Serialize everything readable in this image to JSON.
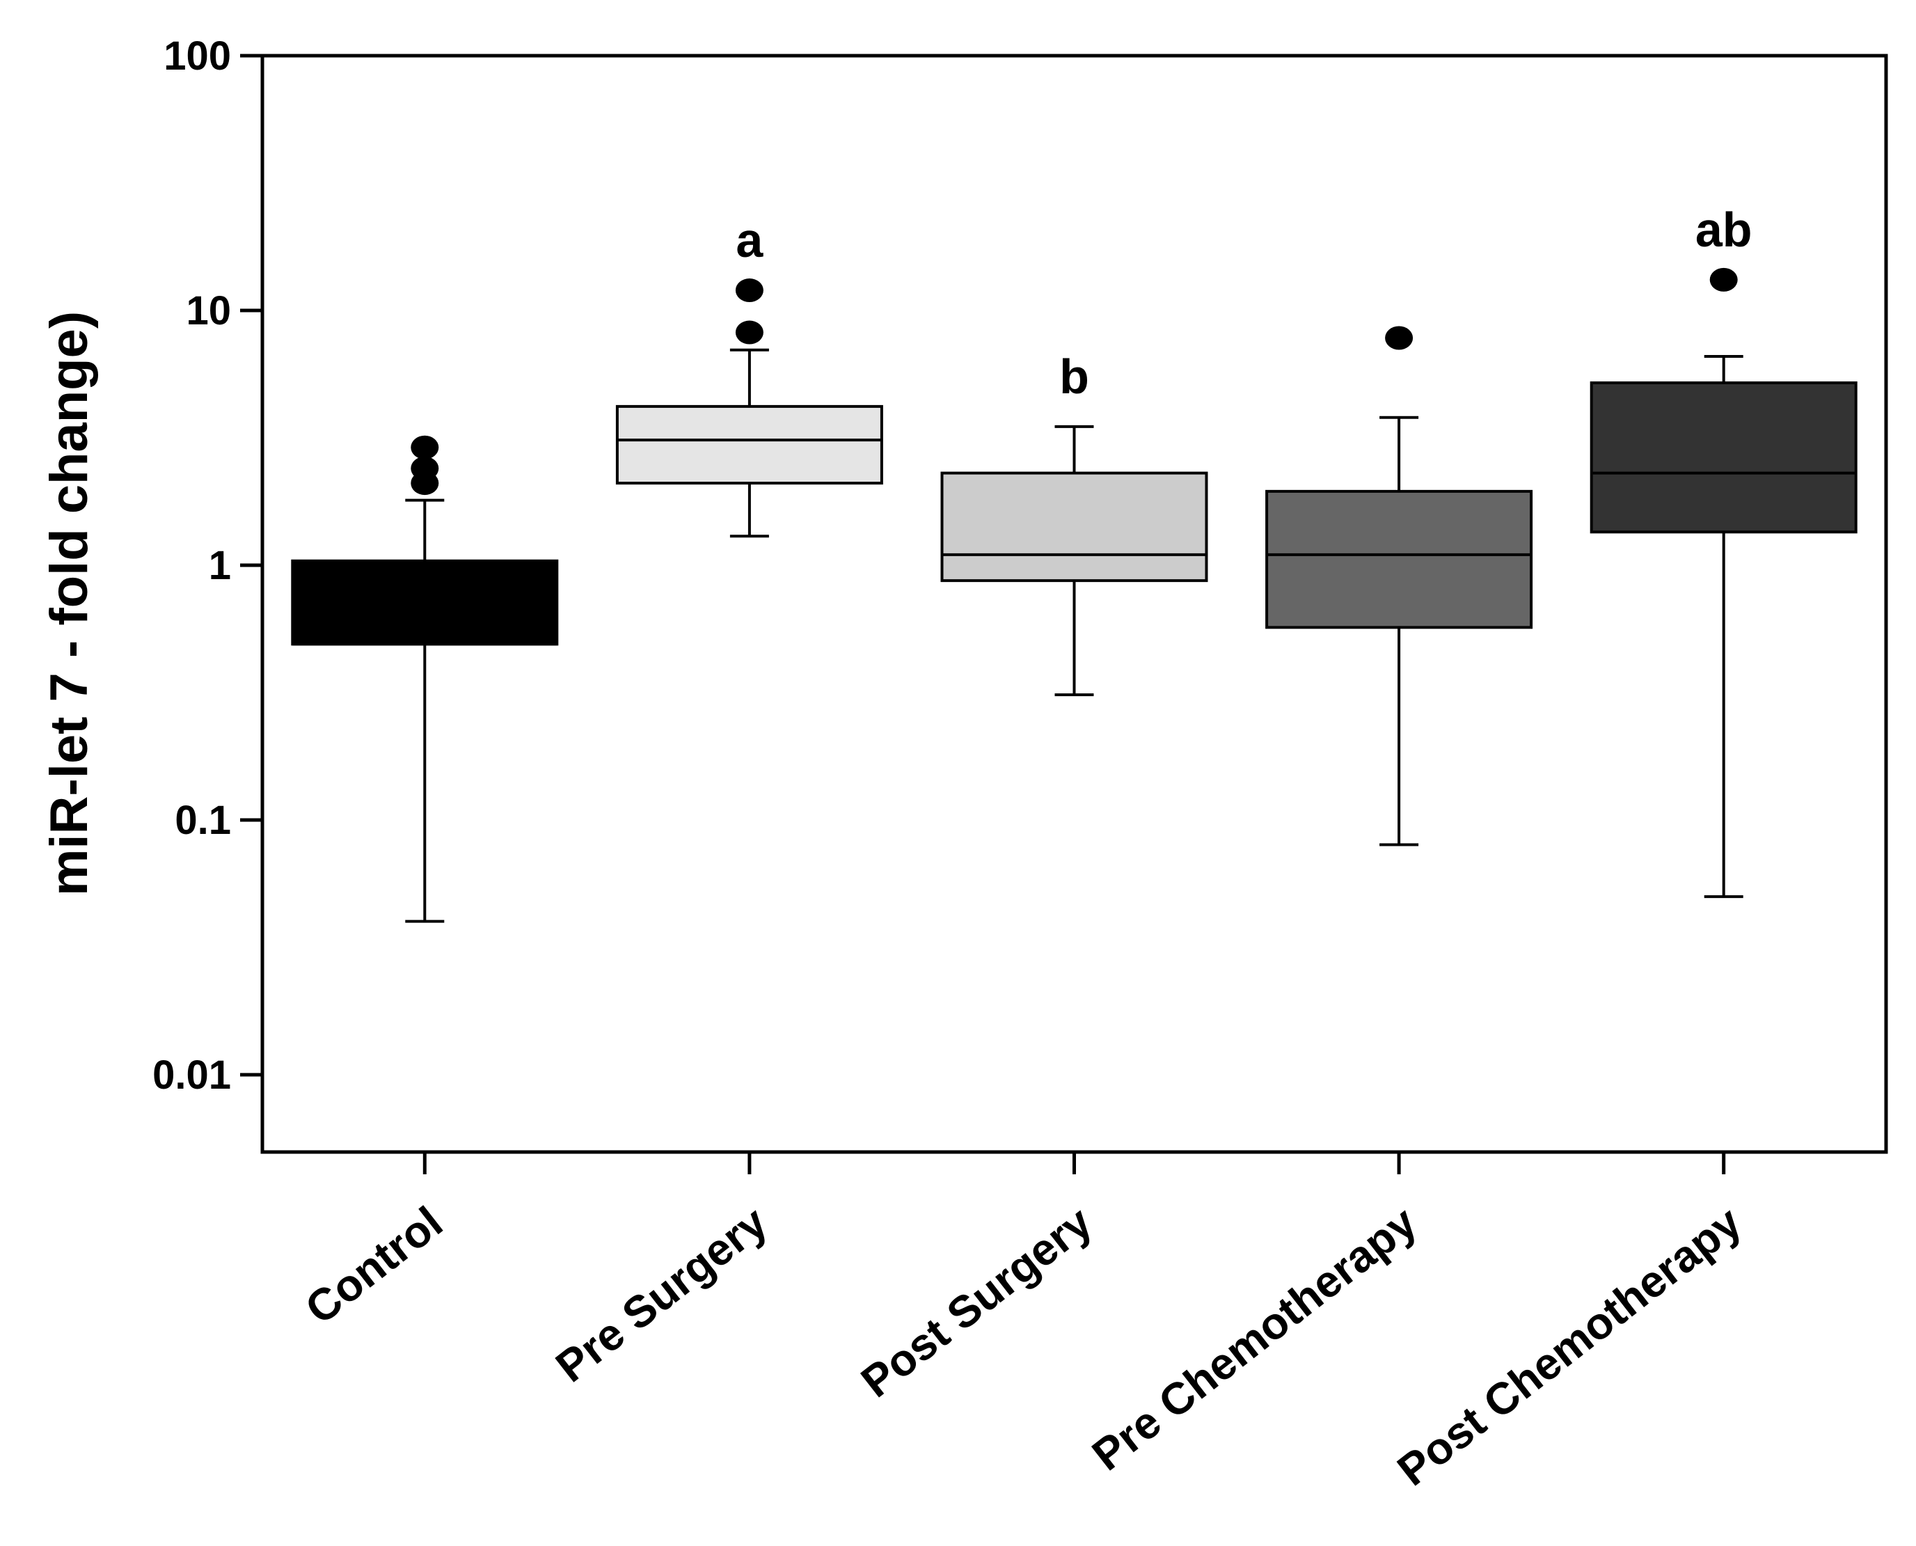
{
  "chart_data": {
    "type": "box",
    "title": "",
    "xlabel": "",
    "ylabel": "miR-let 7 - fold change)",
    "yscale": "log",
    "ylim": [
      0.005,
      100
    ],
    "yticks": [
      0.01,
      0.1,
      1,
      10,
      100
    ],
    "ytick_labels": [
      "0.01",
      "0.1",
      "1",
      "10",
      "100"
    ],
    "grid": false,
    "categories": [
      "Control",
      "Pre Surgery",
      "Post Surgery",
      "Pre Chemotherapy",
      "Post Chemotherapy"
    ],
    "boxes": [
      {
        "name": "Control",
        "whisker_low": 0.04,
        "q1": 0.49,
        "median": 0.49,
        "q3": 1.04,
        "whisker_high": 1.8,
        "outliers": [
          2.1,
          2.4,
          2.9
        ],
        "color": "#000000",
        "annotation": ""
      },
      {
        "name": "Pre Surgery",
        "whisker_low": 1.3,
        "q1": 2.1,
        "median": 3.1,
        "q3": 4.2,
        "whisker_high": 7.0,
        "outliers": [
          8.2,
          12.0
        ],
        "color": "#e5e5e5",
        "annotation": "a"
      },
      {
        "name": "Post Surgery",
        "whisker_low": 0.31,
        "q1": 0.87,
        "median": 1.1,
        "q3": 2.3,
        "whisker_high": 3.5,
        "outliers": [],
        "color": "#cccccc",
        "annotation": "b"
      },
      {
        "name": "Pre Chemotherapy",
        "whisker_low": 0.08,
        "q1": 0.57,
        "median": 1.1,
        "q3": 1.95,
        "whisker_high": 3.8,
        "outliers": [
          7.8
        ],
        "color": "#666666",
        "annotation": ""
      },
      {
        "name": "Post Chemotherapy",
        "whisker_low": 0.05,
        "q1": 1.35,
        "median": 2.3,
        "q3": 5.2,
        "whisker_high": 6.6,
        "outliers": [
          13.2
        ],
        "color": "#333333",
        "annotation": "ab"
      }
    ]
  }
}
